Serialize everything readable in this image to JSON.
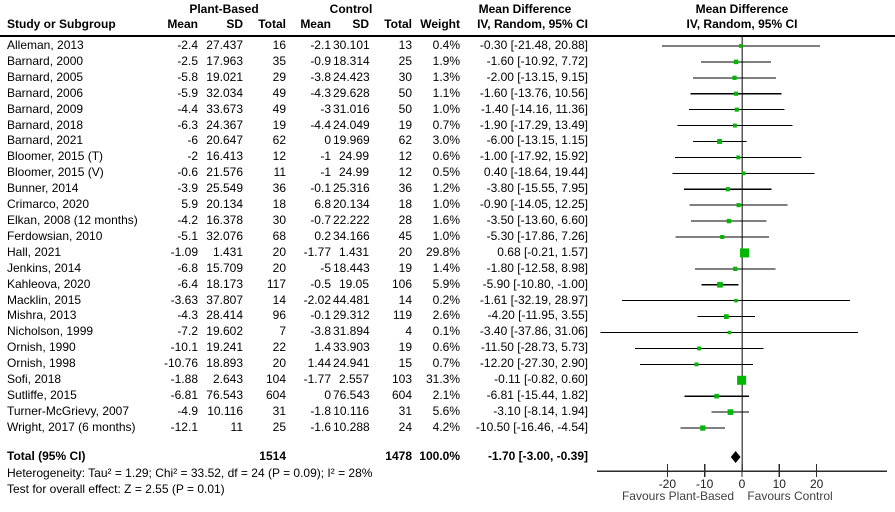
{
  "figure": {
    "header": {
      "study_col": "Study or Subgroup",
      "group_plant": "Plant-Based",
      "group_control": "Control",
      "sub_cols": {
        "mean": "Mean",
        "sd": "SD",
        "total": "Total",
        "weight": "Weight"
      },
      "md_col_line1": "Mean Difference",
      "md_col_line2": "IV, Random, 95% CI",
      "plot_col_line1": "Mean Difference",
      "plot_col_line2": "IV, Random, 95% CI"
    },
    "footer": {
      "heterogeneity": "Heterogeneity: Tau² = 1.29; Chi² = 33.52, df = 24 (P = 0.09); I² = 28%",
      "overall_effect": "Test for overall effect: Z = 2.55 (P = 0.01)"
    }
  },
  "chart_data": {
    "type": "forest",
    "title": "Mean Difference — IV, Random, 95% CI",
    "x_axis": {
      "ticks": [
        -20,
        -10,
        0,
        10,
        20
      ],
      "xlim": [
        -39,
        39
      ],
      "left_label": "Favours Plant-Based",
      "right_label": "Favours Control"
    },
    "studies": [
      {
        "name": "Alleman, 2013",
        "pb_mean": "-2.4",
        "pb_sd": "27.437",
        "pb_total": "16",
        "c_mean": "-2.1",
        "c_sd": "30.101",
        "c_total": "13",
        "weight": "0.4%",
        "weight_pct": 0.4,
        "ci_text": "-0.30 [-21.48, 20.88]",
        "md": -0.3,
        "lo": -21.48,
        "hi": 20.88
      },
      {
        "name": "Barnard, 2000",
        "pb_mean": "-2.5",
        "pb_sd": "17.963",
        "pb_total": "35",
        "c_mean": "-0.9",
        "c_sd": "18.314",
        "c_total": "25",
        "weight": "1.9%",
        "weight_pct": 1.9,
        "ci_text": "-1.60 [-10.92, 7.72]",
        "md": -1.6,
        "lo": -10.92,
        "hi": 7.72
      },
      {
        "name": "Barnard, 2005",
        "pb_mean": "-5.8",
        "pb_sd": "19.021",
        "pb_total": "29",
        "c_mean": "-3.8",
        "c_sd": "24.423",
        "c_total": "30",
        "weight": "1.3%",
        "weight_pct": 1.3,
        "ci_text": "-2.00 [-13.15, 9.15]",
        "md": -2.0,
        "lo": -13.15,
        "hi": 9.15
      },
      {
        "name": "Barnard, 2006",
        "pb_mean": "-5.9",
        "pb_sd": "32.034",
        "pb_total": "49",
        "c_mean": "-4.3",
        "c_sd": "29.628",
        "c_total": "50",
        "weight": "1.1%",
        "weight_pct": 1.1,
        "ci_text": "-1.60 [-13.76, 10.56]",
        "md": -1.6,
        "lo": -13.76,
        "hi": 10.56
      },
      {
        "name": "Barnard, 2009",
        "pb_mean": "-4.4",
        "pb_sd": "33.673",
        "pb_total": "49",
        "c_mean": "-3",
        "c_sd": "31.016",
        "c_total": "50",
        "weight": "1.0%",
        "weight_pct": 1.0,
        "ci_text": "-1.40 [-14.16, 11.36]",
        "md": -1.4,
        "lo": -14.16,
        "hi": 11.36
      },
      {
        "name": "Barnard, 2018",
        "pb_mean": "-6.3",
        "pb_sd": "24.367",
        "pb_total": "19",
        "c_mean": "-4.4",
        "c_sd": "24.049",
        "c_total": "19",
        "weight": "0.7%",
        "weight_pct": 0.7,
        "ci_text": "-1.90 [-17.29, 13.49]",
        "md": -1.9,
        "lo": -17.29,
        "hi": 13.49
      },
      {
        "name": "Barnard, 2021",
        "pb_mean": "-6",
        "pb_sd": "20.647",
        "pb_total": "62",
        "c_mean": "0",
        "c_sd": "19.969",
        "c_total": "62",
        "weight": "3.0%",
        "weight_pct": 3.0,
        "ci_text": "-6.00 [-13.15, 1.15]",
        "md": -6.0,
        "lo": -13.15,
        "hi": 1.15
      },
      {
        "name": "Bloomer, 2015 (T)",
        "pb_mean": "-2",
        "pb_sd": "16.413",
        "pb_total": "12",
        "c_mean": "-1",
        "c_sd": "24.99",
        "c_total": "12",
        "weight": "0.6%",
        "weight_pct": 0.6,
        "ci_text": "-1.00 [-17.92, 15.92]",
        "md": -1.0,
        "lo": -17.92,
        "hi": 15.92
      },
      {
        "name": "Bloomer, 2015 (V)",
        "pb_mean": "-0.6",
        "pb_sd": "21.576",
        "pb_total": "11",
        "c_mean": "-1",
        "c_sd": "24.99",
        "c_total": "12",
        "weight": "0.5%",
        "weight_pct": 0.5,
        "ci_text": "0.40 [-18.64, 19.44]",
        "md": 0.4,
        "lo": -18.64,
        "hi": 19.44
      },
      {
        "name": "Bunner, 2014",
        "pb_mean": "-3.9",
        "pb_sd": "25.549",
        "pb_total": "36",
        "c_mean": "-0.1",
        "c_sd": "25.316",
        "c_total": "36",
        "weight": "1.2%",
        "weight_pct": 1.2,
        "ci_text": "-3.80 [-15.55, 7.95]",
        "md": -3.8,
        "lo": -15.55,
        "hi": 7.95
      },
      {
        "name": "Crimarco, 2020",
        "pb_mean": "5.9",
        "pb_sd": "20.134",
        "pb_total": "18",
        "c_mean": "6.8",
        "c_sd": "20.134",
        "c_total": "18",
        "weight": "1.0%",
        "weight_pct": 1.0,
        "ci_text": "-0.90 [-14.05, 12.25]",
        "md": -0.9,
        "lo": -14.05,
        "hi": 12.25
      },
      {
        "name": "Elkan, 2008 (12 months)",
        "pb_mean": "-4.2",
        "pb_sd": "16.378",
        "pb_total": "30",
        "c_mean": "-0.7",
        "c_sd": "22.222",
        "c_total": "28",
        "weight": "1.6%",
        "weight_pct": 1.6,
        "ci_text": "-3.50 [-13.60, 6.60]",
        "md": -3.5,
        "lo": -13.6,
        "hi": 6.6
      },
      {
        "name": "Ferdowsian, 2010",
        "pb_mean": "-5.1",
        "pb_sd": "32.076",
        "pb_total": "68",
        "c_mean": "0.2",
        "c_sd": "34.166",
        "c_total": "45",
        "weight": "1.0%",
        "weight_pct": 1.0,
        "ci_text": "-5.30 [-17.86, 7.26]",
        "md": -5.3,
        "lo": -17.86,
        "hi": 7.26
      },
      {
        "name": "Hall, 2021",
        "pb_mean": "-1.09",
        "pb_sd": "1.431",
        "pb_total": "20",
        "c_mean": "-1.77",
        "c_sd": "1.431",
        "c_total": "20",
        "weight": "29.8%",
        "weight_pct": 29.8,
        "ci_text": "0.68 [-0.21, 1.57]",
        "md": 0.68,
        "lo": -0.21,
        "hi": 1.57
      },
      {
        "name": "Jenkins, 2014",
        "pb_mean": "-6.8",
        "pb_sd": "15.709",
        "pb_total": "20",
        "c_mean": "-5",
        "c_sd": "18.443",
        "c_total": "19",
        "weight": "1.4%",
        "weight_pct": 1.4,
        "ci_text": "-1.80 [-12.58, 8.98]",
        "md": -1.8,
        "lo": -12.58,
        "hi": 8.98
      },
      {
        "name": "Kahleova, 2020",
        "pb_mean": "-6.4",
        "pb_sd": "18.173",
        "pb_total": "117",
        "c_mean": "-0.5",
        "c_sd": "19.05",
        "c_total": "106",
        "weight": "5.9%",
        "weight_pct": 5.9,
        "ci_text": "-5.90 [-10.80, -1.00]",
        "md": -5.9,
        "lo": -10.8,
        "hi": -1.0
      },
      {
        "name": "Macklin, 2015",
        "pb_mean": "-3.63",
        "pb_sd": "37.807",
        "pb_total": "14",
        "c_mean": "-2.02",
        "c_sd": "44.481",
        "c_total": "14",
        "weight": "0.2%",
        "weight_pct": 0.2,
        "ci_text": "-1.61 [-32.19, 28.97]",
        "md": -1.61,
        "lo": -32.19,
        "hi": 28.97
      },
      {
        "name": "Mishra, 2013",
        "pb_mean": "-4.3",
        "pb_sd": "28.414",
        "pb_total": "96",
        "c_mean": "-0.1",
        "c_sd": "29.312",
        "c_total": "119",
        "weight": "2.6%",
        "weight_pct": 2.6,
        "ci_text": "-4.20 [-11.95, 3.55]",
        "md": -4.2,
        "lo": -11.95,
        "hi": 3.55
      },
      {
        "name": "Nicholson, 1999",
        "pb_mean": "-7.2",
        "pb_sd": "19.602",
        "pb_total": "7",
        "c_mean": "-3.8",
        "c_sd": "31.894",
        "c_total": "4",
        "weight": "0.1%",
        "weight_pct": 0.1,
        "ci_text": "-3.40 [-37.86, 31.06]",
        "md": -3.4,
        "lo": -37.86,
        "hi": 31.06
      },
      {
        "name": "Ornish, 1990",
        "pb_mean": "-10.1",
        "pb_sd": "19.241",
        "pb_total": "22",
        "c_mean": "1.4",
        "c_sd": "33.903",
        "c_total": "19",
        "weight": "0.6%",
        "weight_pct": 0.6,
        "ci_text": "-11.50 [-28.73, 5.73]",
        "md": -11.5,
        "lo": -28.73,
        "hi": 5.73
      },
      {
        "name": "Ornish, 1998",
        "pb_mean": "-10.76",
        "pb_sd": "18.893",
        "pb_total": "20",
        "c_mean": "1.44",
        "c_sd": "24.941",
        "c_total": "15",
        "weight": "0.7%",
        "weight_pct": 0.7,
        "ci_text": "-12.20 [-27.30, 2.90]",
        "md": -12.2,
        "lo": -27.3,
        "hi": 2.9
      },
      {
        "name": "Sofi, 2018",
        "pb_mean": "-1.88",
        "pb_sd": "2.643",
        "pb_total": "104",
        "c_mean": "-1.77",
        "c_sd": "2.557",
        "c_total": "103",
        "weight": "31.3%",
        "weight_pct": 31.3,
        "ci_text": "-0.11 [-0.82, 0.60]",
        "md": -0.11,
        "lo": -0.82,
        "hi": 0.6
      },
      {
        "name": "Sutliffe, 2015",
        "pb_mean": "-6.81",
        "pb_sd": "76.543",
        "pb_total": "604",
        "c_mean": "0",
        "c_sd": "76.543",
        "c_total": "604",
        "weight": "2.1%",
        "weight_pct": 2.1,
        "ci_text": "-6.81 [-15.44, 1.82]",
        "md": -6.81,
        "lo": -15.44,
        "hi": 1.82
      },
      {
        "name": "Turner-McGrievy, 2007",
        "pb_mean": "-4.9",
        "pb_sd": "10.116",
        "pb_total": "31",
        "c_mean": "-1.8",
        "c_sd": "10.116",
        "c_total": "31",
        "weight": "5.6%",
        "weight_pct": 5.6,
        "ci_text": "-3.10 [-8.14, 1.94]",
        "md": -3.1,
        "lo": -8.14,
        "hi": 1.94
      },
      {
        "name": "Wright, 2017 (6 months)",
        "pb_mean": "-12.1",
        "pb_sd": "11",
        "pb_total": "25",
        "c_mean": "-1.6",
        "c_sd": "10.288",
        "c_total": "24",
        "weight": "4.2%",
        "weight_pct": 4.2,
        "ci_text": "-10.50 [-16.46, -4.54]",
        "md": -10.5,
        "lo": -16.46,
        "hi": -4.54
      }
    ],
    "total": {
      "label": "Total (95% CI)",
      "pb_total": "1514",
      "c_total": "1478",
      "weight": "100.0%",
      "ci_text": "-1.70 [-3.00, -0.39]",
      "md": -1.7,
      "lo": -3.0,
      "hi": -0.39
    },
    "colors": {
      "square": "#00B800",
      "diamond": "#000000",
      "ci_line": "#000000",
      "zero_line": "#58585a",
      "axis": "#2b2b2b"
    }
  }
}
